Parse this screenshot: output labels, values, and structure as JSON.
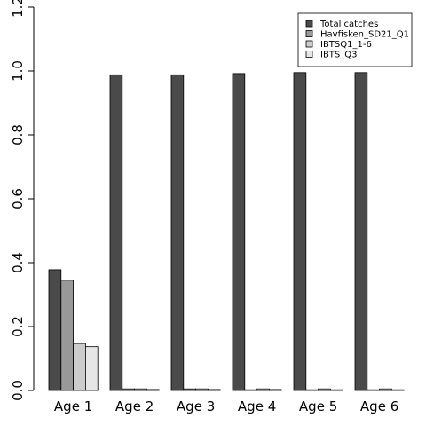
{
  "chart_data": {
    "type": "bar",
    "categories": [
      "Age 1",
      "Age 2",
      "Age 3",
      "Age 4",
      "Age 5",
      "Age 6"
    ],
    "series": [
      {
        "name": "Total catches",
        "color": "#4a4a4a",
        "values": [
          0.378,
          0.988,
          0.988,
          0.992,
          0.995,
          0.995
        ]
      },
      {
        "name": "Havfisken_SD21_Q1",
        "color": "#999999",
        "values": [
          0.345,
          0.005,
          0.005,
          0.0,
          0.0,
          0.0
        ]
      },
      {
        "name": "IBTSQ1_1-6",
        "color": "#cccccc",
        "values": [
          0.147,
          0.005,
          0.005,
          0.005,
          0.005,
          0.005
        ]
      },
      {
        "name": "IBTS_Q3",
        "color": "#e6e6e6",
        "values": [
          0.137,
          0.003,
          0.003,
          0.003,
          0.0,
          0.0
        ]
      }
    ],
    "ylim": [
      0,
      1.2
    ],
    "yticks": [
      "0.0",
      "0.2",
      "0.4",
      "0.6",
      "0.8",
      "1.0",
      "1.2"
    ],
    "legend_position": "top-right",
    "grid": false,
    "title": "",
    "xlabel": "",
    "ylabel": ""
  }
}
